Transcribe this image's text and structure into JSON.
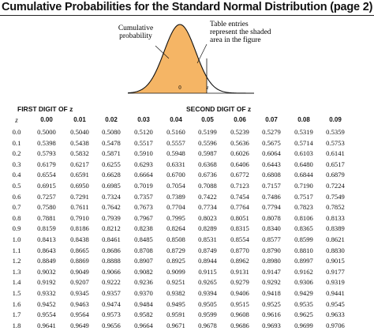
{
  "title": "Cumulative Probabilities for the Standard Normal Distribution (page 2)",
  "figure": {
    "left_label": [
      "Cumulative",
      "probability"
    ],
    "right_label": [
      "Table entries",
      "represent the shaded",
      "area in the figure"
    ],
    "axis_zero": "0",
    "axis_z": "z",
    "shade_color": "#F5B565"
  },
  "table": {
    "first_digit_label": "FIRST DIGIT OF z",
    "second_digit_label": "SECOND DIGIT OF z",
    "z_header": "z",
    "columns": [
      "0.00",
      "0.01",
      "0.02",
      "0.03",
      "0.04",
      "0.05",
      "0.06",
      "0.07",
      "0.08",
      "0.09"
    ],
    "rows": [
      {
        "z": "0.0",
        "values": [
          "0.5000",
          "0.5040",
          "0.5080",
          "0.5120",
          "0.5160",
          "0.5199",
          "0.5239",
          "0.5279",
          "0.5319",
          "0.5359"
        ]
      },
      {
        "z": "0.1",
        "values": [
          "0.5398",
          "0.5438",
          "0.5478",
          "0.5517",
          "0.5557",
          "0.5596",
          "0.5636",
          "0.5675",
          "0.5714",
          "0.5753"
        ]
      },
      {
        "z": "0.2",
        "values": [
          "0.5793",
          "0.5832",
          "0.5871",
          "0.5910",
          "0.5948",
          "0.5987",
          "0.6026",
          "0.6064",
          "0.6103",
          "0.6141"
        ]
      },
      {
        "z": "0.3",
        "values": [
          "0.6179",
          "0.6217",
          "0.6255",
          "0.6293",
          "0.6331",
          "0.6368",
          "0.6406",
          "0.6443",
          "0.6480",
          "0.6517"
        ]
      },
      {
        "z": "0.4",
        "values": [
          "0.6554",
          "0.6591",
          "0.6628",
          "0.6664",
          "0.6700",
          "0.6736",
          "0.6772",
          "0.6808",
          "0.6844",
          "0.6879"
        ]
      },
      {
        "z": "0.5",
        "values": [
          "0.6915",
          "0.6950",
          "0.6985",
          "0.7019",
          "0.7054",
          "0.7088",
          "0.7123",
          "0.7157",
          "0.7190",
          "0.7224"
        ]
      },
      {
        "z": "0.6",
        "values": [
          "0.7257",
          "0.7291",
          "0.7324",
          "0.7357",
          "0.7389",
          "0.7422",
          "0.7454",
          "0.7486",
          "0.7517",
          "0.7549"
        ]
      },
      {
        "z": "0.7",
        "values": [
          "0.7580",
          "0.7611",
          "0.7642",
          "0.7673",
          "0.7704",
          "0.7734",
          "0.7764",
          "0.7794",
          "0.7823",
          "0.7852"
        ]
      },
      {
        "z": "0.8",
        "values": [
          "0.7881",
          "0.7910",
          "0.7939",
          "0.7967",
          "0.7995",
          "0.8023",
          "0.8051",
          "0.8078",
          "0.8106",
          "0.8133"
        ]
      },
      {
        "z": "0.9",
        "values": [
          "0.8159",
          "0.8186",
          "0.8212",
          "0.8238",
          "0.8264",
          "0.8289",
          "0.8315",
          "0.8340",
          "0.8365",
          "0.8389"
        ]
      },
      {
        "z": "1.0",
        "values": [
          "0.8413",
          "0.8438",
          "0.8461",
          "0.8485",
          "0.8508",
          "0.8531",
          "0.8554",
          "0.8577",
          "0.8599",
          "0.8621"
        ]
      },
      {
        "z": "1.1",
        "values": [
          "0.8643",
          "0.8665",
          "0.8686",
          "0.8708",
          "0.8729",
          "0.8749",
          "0.8770",
          "0.8790",
          "0.8810",
          "0.8830"
        ]
      },
      {
        "z": "1.2",
        "values": [
          "0.8849",
          "0.8869",
          "0.8888",
          "0.8907",
          "0.8925",
          "0.8944",
          "0.8962",
          "0.8980",
          "0.8997",
          "0.9015"
        ]
      },
      {
        "z": "1.3",
        "values": [
          "0.9032",
          "0.9049",
          "0.9066",
          "0.9082",
          "0.9099",
          "0.9115",
          "0.9131",
          "0.9147",
          "0.9162",
          "0.9177"
        ]
      },
      {
        "z": "1.4",
        "values": [
          "0.9192",
          "0.9207",
          "0.9222",
          "0.9236",
          "0.9251",
          "0.9265",
          "0.9279",
          "0.9292",
          "0.9306",
          "0.9319"
        ]
      },
      {
        "z": "1.5",
        "values": [
          "0.9332",
          "0.9345",
          "0.9357",
          "0.9370",
          "0.9382",
          "0.9394",
          "0.9406",
          "0.9418",
          "0.9429",
          "0.9441"
        ]
      },
      {
        "z": "1.6",
        "values": [
          "0.9452",
          "0.9463",
          "0.9474",
          "0.9484",
          "0.9495",
          "0.9505",
          "0.9515",
          "0.9525",
          "0.9535",
          "0.9545"
        ]
      },
      {
        "z": "1.7",
        "values": [
          "0.9554",
          "0.9564",
          "0.9573",
          "0.9582",
          "0.9591",
          "0.9599",
          "0.9608",
          "0.9616",
          "0.9625",
          "0.9633"
        ]
      },
      {
        "z": "1.8",
        "values": [
          "0.9641",
          "0.9649",
          "0.9656",
          "0.9664",
          "0.9671",
          "0.9678",
          "0.9686",
          "0.9693",
          "0.9699",
          "0.9706"
        ]
      }
    ]
  }
}
